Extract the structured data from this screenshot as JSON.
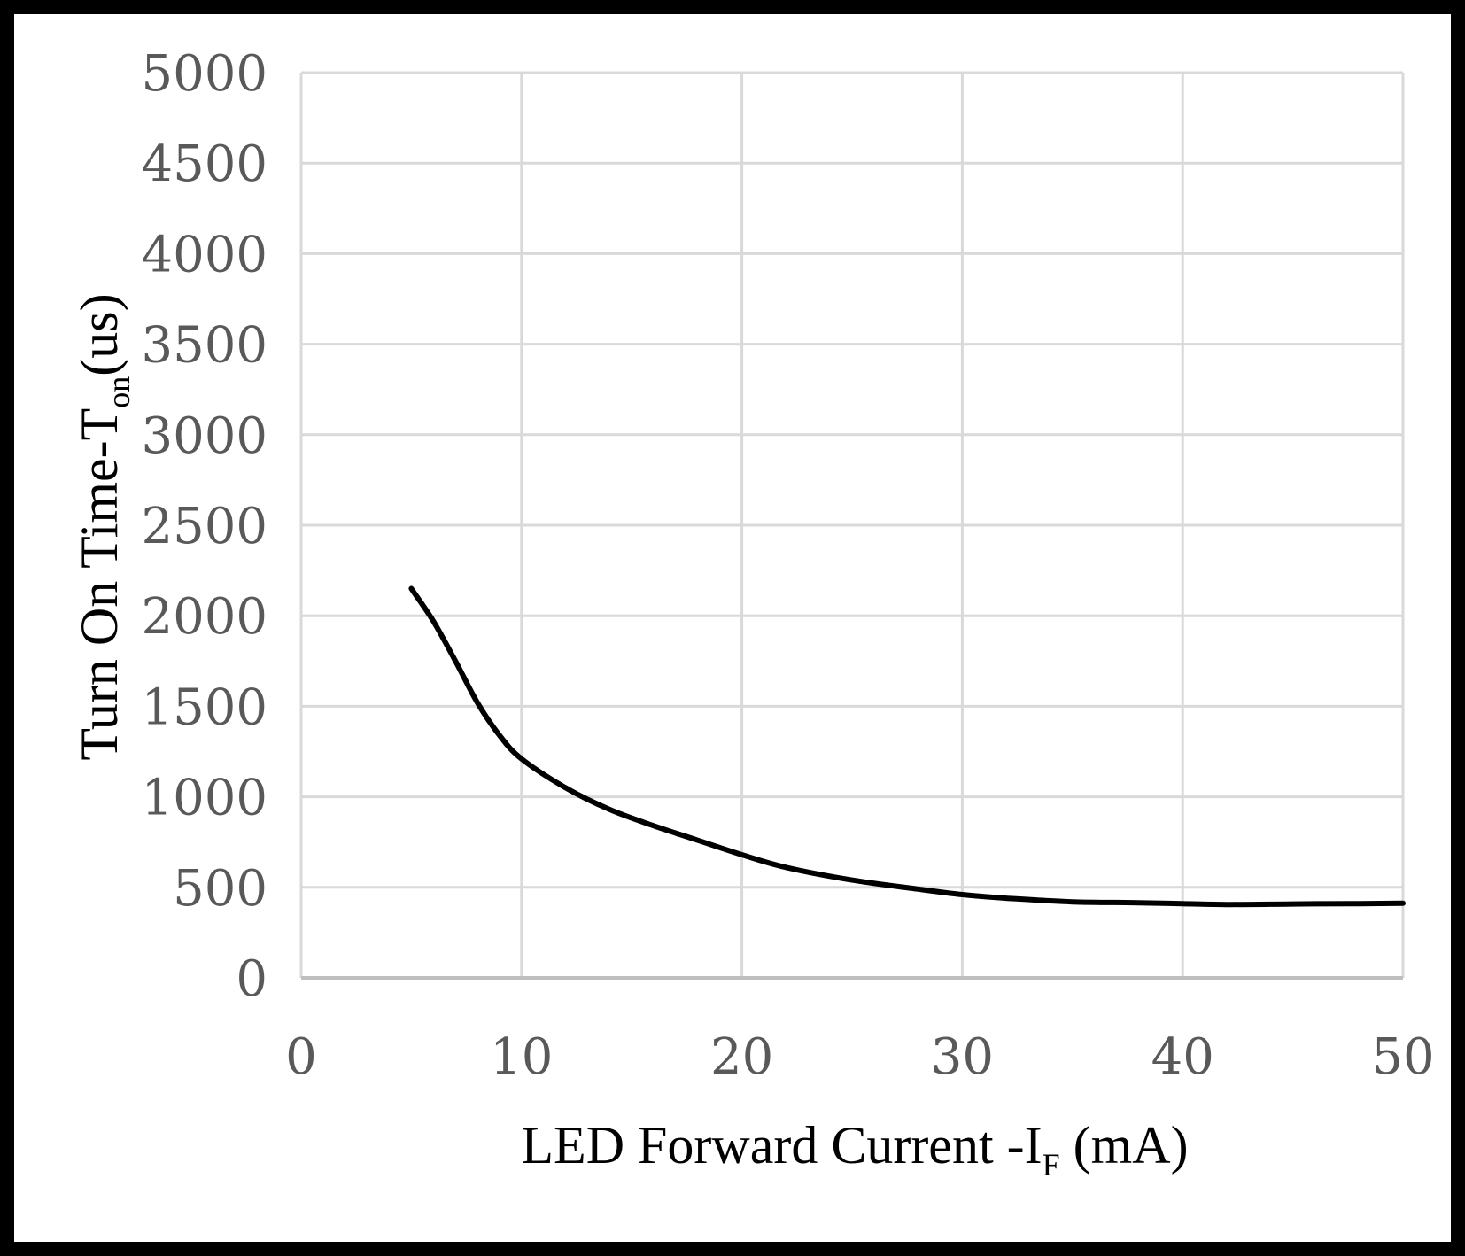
{
  "chart_data": {
    "type": "line",
    "title": "",
    "xlabel": "LED Forward Current -I",
    "xlabel_sub": "F",
    "xlabel_suffix": " (mA)",
    "ylabel": "Turn On Time-T",
    "ylabel_sub": "on",
    "ylabel_suffix": "(us)",
    "xlim": [
      0,
      50
    ],
    "ylim": [
      0,
      5000
    ],
    "xticks": [
      0,
      10,
      20,
      30,
      40,
      50
    ],
    "yticks": [
      0,
      500,
      1000,
      1500,
      2000,
      2500,
      3000,
      3500,
      4000,
      4500,
      5000
    ],
    "grid": true,
    "series": [
      {
        "name": "Turn On Time",
        "color": "#000000",
        "x": [
          5,
          6,
          7,
          8,
          9,
          10,
          12,
          14,
          16,
          18,
          20,
          22,
          25,
          28,
          30,
          32,
          35,
          38,
          40,
          42,
          45,
          48,
          50
        ],
        "y": [
          2150,
          1970,
          1750,
          1520,
          1340,
          1210,
          1050,
          930,
          840,
          760,
          680,
          610,
          540,
          490,
          460,
          440,
          420,
          415,
          410,
          405,
          408,
          410,
          412
        ]
      }
    ]
  }
}
